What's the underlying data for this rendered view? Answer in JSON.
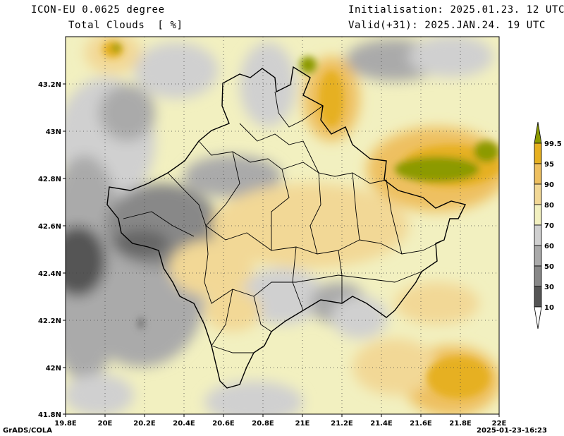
{
  "header": {
    "model": "ICON-EU 0.0625 degree",
    "variable": "Total Clouds  [ %]",
    "init": "Initialisation: 2025.01.23. 12 UTC",
    "valid": "Valid(+31): 2025.JAN.24. 19 UTC"
  },
  "axes": {
    "x_ticks": [
      "19.8E",
      "20E",
      "20.2E",
      "20.4E",
      "20.6E",
      "20.8E",
      "21E",
      "21.2E",
      "21.4E",
      "21.6E",
      "21.8E",
      "22E"
    ],
    "y_ticks": [
      "43.2N",
      "43N",
      "42.8N",
      "42.6N",
      "42.4N",
      "42.2N",
      "42N",
      "41.8N"
    ]
  },
  "colorbar": {
    "levels": [
      "99.5",
      "95",
      "90",
      "80",
      "70",
      "60",
      "50",
      "30",
      "10"
    ],
    "colors": [
      "#8c9a00",
      "#e6b020",
      "#eec060",
      "#f2d896",
      "#f2f0c0",
      "#d0d0d0",
      "#aaaaaa",
      "#888888",
      "#666666",
      "#444444",
      "#ffffff"
    ]
  },
  "footer": {
    "left": "GrADS/COLA",
    "right": "2025-01-23-16:23"
  }
}
